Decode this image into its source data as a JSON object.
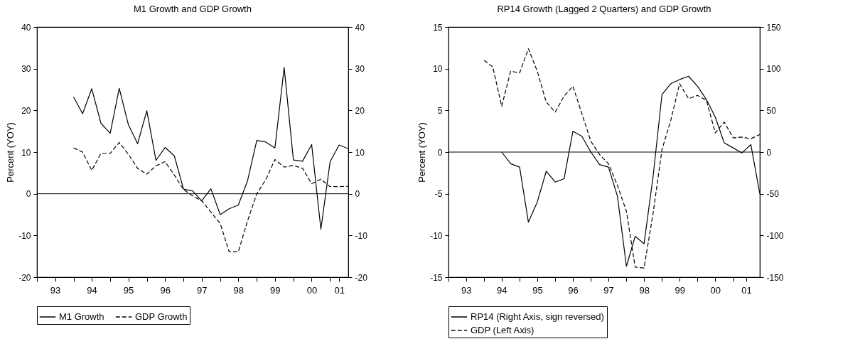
{
  "chart_data": [
    {
      "type": "line",
      "title": "M1 Growth and GDP Growth",
      "ylabel": "Percent (YOY)",
      "x": [
        "1994-01",
        "1994-04",
        "1994-07",
        "1994-10",
        "1995-01",
        "1995-04",
        "1995-07",
        "1995-10",
        "1996-01",
        "1996-04",
        "1996-07",
        "1996-10",
        "1997-01",
        "1997-04",
        "1997-07",
        "1997-10",
        "1998-01",
        "1998-04",
        "1998-07",
        "1998-10",
        "1999-01",
        "1999-04",
        "1999-07",
        "1999-10",
        "2000-01",
        "2000-04",
        "2000-07",
        "2000-10",
        "2001-01",
        "2001-04",
        "2001-07"
      ],
      "series": [
        {
          "name": "M1 Growth",
          "color": "#000000",
          "line_style": "solid",
          "values": [
            23.2,
            19.2,
            25.2,
            16.9,
            14.5,
            25.3,
            16.6,
            12.0,
            19.9,
            8.0,
            11.1,
            9.1,
            1.1,
            0.7,
            -1.7,
            1.2,
            -5.0,
            -3.6,
            -2.7,
            3.1,
            12.8,
            12.4,
            11.0,
            30.3,
            8.1,
            7.8,
            11.8,
            -8.5,
            7.7,
            11.7,
            10.8
          ]
        },
        {
          "name": "GDP Growth",
          "color": "#000000",
          "line_style": "dashed",
          "values": [
            11.0,
            10.0,
            5.6,
            9.7,
            9.7,
            12.3,
            9.5,
            6.1,
            4.7,
            6.7,
            7.7,
            4.5,
            1.0,
            -0.5,
            -1.7,
            -4.4,
            -7.1,
            -13.9,
            -13.9,
            -6.5,
            0.0,
            3.4,
            8.2,
            6.4,
            6.8,
            6.1,
            2.4,
            3.5,
            1.7,
            1.7,
            1.8
          ]
        }
      ],
      "xlim": [
        "1993-01",
        "2001-07"
      ],
      "xticks": [
        {
          "value": "1993-01",
          "label": null
        },
        {
          "value": "1993-07",
          "label": "93"
        },
        {
          "value": "1994-01",
          "label": null
        },
        {
          "value": "1994-07",
          "label": "94"
        },
        {
          "value": "1995-01",
          "label": null
        },
        {
          "value": "1995-07",
          "label": "95"
        },
        {
          "value": "1996-01",
          "label": null
        },
        {
          "value": "1996-07",
          "label": "96"
        },
        {
          "value": "1997-01",
          "label": null
        },
        {
          "value": "1997-07",
          "label": "97"
        },
        {
          "value": "1998-01",
          "label": null
        },
        {
          "value": "1998-07",
          "label": "98"
        },
        {
          "value": "1999-01",
          "label": null
        },
        {
          "value": "1999-07",
          "label": "99"
        },
        {
          "value": "2000-01",
          "label": null
        },
        {
          "value": "2000-07",
          "label": "00"
        },
        {
          "value": "2001-01",
          "label": null
        },
        {
          "value": "2001-04",
          "label": "01"
        }
      ],
      "ylim": [
        -20,
        40
      ],
      "yticks": [
        -20,
        -10,
        0,
        10,
        20,
        30,
        40
      ],
      "y2lim": [
        -20,
        40
      ],
      "y2ticks": [
        -20,
        -10,
        0,
        10,
        20,
        30,
        40
      ],
      "ref_lines": [
        {
          "axis": "y",
          "value": 0,
          "color": "#000000"
        }
      ],
      "grid": false,
      "legend": "bottom"
    },
    {
      "type": "line",
      "title": "RP14 Growth (Lagged 2 Quarters) and GDP Growth",
      "ylabel": "Percent (YOY)",
      "x": [
        "1994-01",
        "1994-04",
        "1994-07",
        "1994-10",
        "1995-01",
        "1995-04",
        "1995-07",
        "1995-10",
        "1996-01",
        "1996-04",
        "1996-07",
        "1996-10",
        "1997-01",
        "1997-04",
        "1997-07",
        "1997-10",
        "1998-01",
        "1998-04",
        "1998-07",
        "1998-10",
        "1999-01",
        "1999-04",
        "1999-07",
        "1999-10",
        "2000-01",
        "2000-04",
        "2000-07",
        "2000-10",
        "2001-01",
        "2001-04",
        "2001-07",
        "2001-10"
      ],
      "series": [
        {
          "name": "RP14 (Right Axis, sign reversed)",
          "color": "#000000",
          "line_style": "solid",
          "axis": "y2",
          "x": [
            "1994-07",
            "1994-10",
            "1995-01",
            "1995-04",
            "1995-07",
            "1995-10",
            "1996-01",
            "1996-04",
            "1996-07",
            "1996-10",
            "1997-01",
            "1997-04",
            "1997-07",
            "1997-10",
            "1998-01",
            "1998-04",
            "1998-07",
            "1998-10",
            "1999-01",
            "1999-04",
            "1999-07",
            "1999-10",
            "2000-01",
            "2000-04",
            "2000-07",
            "2000-10",
            "2001-01",
            "2001-04",
            "2001-07",
            "2001-10"
          ],
          "values": [
            0,
            -14,
            -18,
            -84,
            -60,
            -23,
            -36,
            -32,
            25,
            19,
            0,
            -15,
            -18,
            -53,
            -137,
            -101,
            -110,
            -30,
            69,
            82,
            87,
            91,
            79,
            63,
            42,
            11,
            5,
            -1,
            9,
            -50
          ]
        },
        {
          "name": "GDP (Left Axis)",
          "color": "#000000",
          "line_style": "dashed",
          "values": [
            11.0,
            10.2,
            5.5,
            9.7,
            9.5,
            12.4,
            9.7,
            6.0,
            4.8,
            6.7,
            7.9,
            4.6,
            1.3,
            -0.3,
            -1.4,
            -4.0,
            -7.1,
            -13.8,
            -13.9,
            -7.4,
            0.3,
            3.8,
            8.2,
            6.4,
            6.8,
            6.2,
            2.3,
            3.6,
            1.7,
            1.8,
            1.6,
            2.1
          ]
        }
      ],
      "xlim": [
        "1993-01",
        "2001-10"
      ],
      "xticks": [
        {
          "value": "1993-01",
          "label": null
        },
        {
          "value": "1993-07",
          "label": "93"
        },
        {
          "value": "1994-01",
          "label": null
        },
        {
          "value": "1994-07",
          "label": "94"
        },
        {
          "value": "1995-01",
          "label": null
        },
        {
          "value": "1995-07",
          "label": "95"
        },
        {
          "value": "1996-01",
          "label": null
        },
        {
          "value": "1996-07",
          "label": "96"
        },
        {
          "value": "1997-01",
          "label": null
        },
        {
          "value": "1997-07",
          "label": "97"
        },
        {
          "value": "1998-01",
          "label": null
        },
        {
          "value": "1998-07",
          "label": "98"
        },
        {
          "value": "1999-01",
          "label": null
        },
        {
          "value": "1999-07",
          "label": "99"
        },
        {
          "value": "2000-01",
          "label": null
        },
        {
          "value": "2000-07",
          "label": "00"
        },
        {
          "value": "2001-01",
          "label": null
        },
        {
          "value": "2001-05-16",
          "label": "01"
        }
      ],
      "ylim": [
        -15,
        15
      ],
      "yticks": [
        -15,
        -10,
        -5,
        0,
        5,
        10,
        15
      ],
      "y2lim": [
        -150,
        150
      ],
      "y2ticks": [
        -150,
        -100,
        -50,
        0,
        50,
        100,
        150
      ],
      "ref_lines": [
        {
          "axis": "y",
          "value": 0,
          "color": "#000000"
        }
      ],
      "grid": false,
      "legend": "bottom"
    }
  ]
}
